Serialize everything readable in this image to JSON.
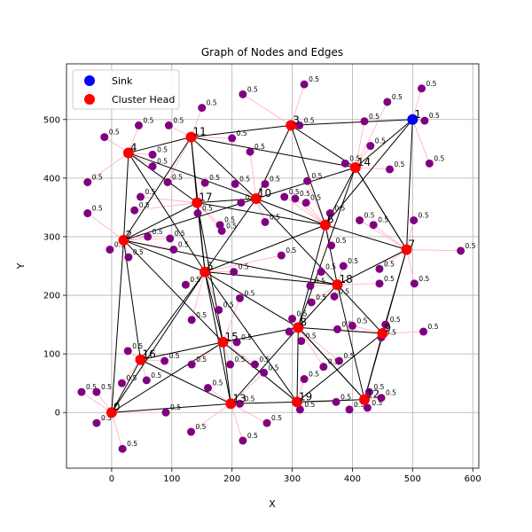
{
  "chart_data": {
    "type": "scatter",
    "title": "Graph of Nodes and Edges",
    "xlabel": "X",
    "ylabel": "Y",
    "xlim": [
      -75,
      610
    ],
    "ylim": [
      -95,
      595
    ],
    "xticks": [
      0,
      100,
      200,
      300,
      400,
      500,
      600
    ],
    "yticks": [
      0,
      100,
      200,
      300,
      400,
      500
    ],
    "grid": true,
    "legend": {
      "position": "upper-left",
      "entries": [
        {
          "label": "Sink",
          "color": "#0000ff"
        },
        {
          "label": "Cluster Head",
          "color": "#ff0000"
        }
      ]
    },
    "colors": {
      "sink": "#0000ff",
      "cluster_head": "#ff0000",
      "member": "#800080",
      "member_edge": "#ffb6c1",
      "head_edge": "#000000"
    },
    "weight_label": "0.5",
    "sink": {
      "id": "1",
      "x": 500,
      "y": 500
    },
    "cluster_heads": [
      {
        "id": "0",
        "x": 0,
        "y": 0
      },
      {
        "id": "2",
        "x": 20,
        "y": 294
      },
      {
        "id": "4",
        "x": 28,
        "y": 443
      },
      {
        "id": "5",
        "x": 155,
        "y": 240
      },
      {
        "id": "6",
        "x": 355,
        "y": 320
      },
      {
        "id": "7",
        "x": 490,
        "y": 278
      },
      {
        "id": "8",
        "x": 310,
        "y": 145
      },
      {
        "id": "9",
        "x": 450,
        "y": 135
      },
      {
        "id": "10",
        "x": 240,
        "y": 365
      },
      {
        "id": "11",
        "x": 132,
        "y": 470
      },
      {
        "id": "12",
        "x": 420,
        "y": 22
      },
      {
        "id": "13",
        "x": 198,
        "y": 15
      },
      {
        "id": "14",
        "x": 405,
        "y": 418
      },
      {
        "id": "15",
        "x": 185,
        "y": 120
      },
      {
        "id": "16",
        "x": 48,
        "y": 90
      },
      {
        "id": "17",
        "x": 142,
        "y": 358
      },
      {
        "id": "18",
        "x": 375,
        "y": 218
      },
      {
        "id": "19",
        "x": 308,
        "y": 18
      },
      {
        "id": "3",
        "x": 298,
        "y": 490
      }
    ],
    "head_edges": [
      [
        "0",
        "16"
      ],
      [
        "0",
        "2"
      ],
      [
        "0",
        "13"
      ],
      [
        "0",
        "15"
      ],
      [
        "0",
        "5"
      ],
      [
        "16",
        "2"
      ],
      [
        "16",
        "15"
      ],
      [
        "16",
        "13"
      ],
      [
        "16",
        "5"
      ],
      [
        "2",
        "4"
      ],
      [
        "2",
        "11"
      ],
      [
        "2",
        "5"
      ],
      [
        "2",
        "17"
      ],
      [
        "2",
        "10"
      ],
      [
        "2",
        "15"
      ],
      [
        "2",
        "18"
      ],
      [
        "4",
        "11"
      ],
      [
        "4",
        "17"
      ],
      [
        "4",
        "10"
      ],
      [
        "4",
        "5"
      ],
      [
        "11",
        "3"
      ],
      [
        "11",
        "17"
      ],
      [
        "11",
        "10"
      ],
      [
        "11",
        "5"
      ],
      [
        "11",
        "14"
      ],
      [
        "3",
        "1"
      ],
      [
        "3",
        "10"
      ],
      [
        "3",
        "14"
      ],
      [
        "3",
        "6"
      ],
      [
        "17",
        "10"
      ],
      [
        "17",
        "5"
      ],
      [
        "17",
        "15"
      ],
      [
        "17",
        "6"
      ],
      [
        "10",
        "6"
      ],
      [
        "10",
        "14"
      ],
      [
        "10",
        "5"
      ],
      [
        "10",
        "18"
      ],
      [
        "14",
        "1"
      ],
      [
        "14",
        "6"
      ],
      [
        "14",
        "7"
      ],
      [
        "14",
        "8"
      ],
      [
        "6",
        "7"
      ],
      [
        "6",
        "18"
      ],
      [
        "6",
        "8"
      ],
      [
        "6",
        "5"
      ],
      [
        "6",
        "1"
      ],
      [
        "1",
        "7"
      ],
      [
        "7",
        "9"
      ],
      [
        "7",
        "12"
      ],
      [
        "7",
        "18"
      ],
      [
        "7",
        "14"
      ],
      [
        "18",
        "9"
      ],
      [
        "18",
        "8"
      ],
      [
        "18",
        "12"
      ],
      [
        "18",
        "5"
      ],
      [
        "9",
        "12"
      ],
      [
        "9",
        "8"
      ],
      [
        "9",
        "19"
      ],
      [
        "8",
        "15"
      ],
      [
        "8",
        "19"
      ],
      [
        "8",
        "13"
      ],
      [
        "8",
        "5"
      ],
      [
        "8",
        "12"
      ],
      [
        "5",
        "15"
      ],
      [
        "5",
        "13"
      ],
      [
        "5",
        "19"
      ],
      [
        "15",
        "13"
      ],
      [
        "15",
        "19"
      ],
      [
        "13",
        "19"
      ],
      [
        "19",
        "12"
      ],
      [
        "12",
        "8"
      ]
    ],
    "members": [
      {
        "x": 45,
        "y": 490,
        "head": "4"
      },
      {
        "x": -12,
        "y": 470,
        "head": "4"
      },
      {
        "x": 68,
        "y": 440,
        "head": "4"
      },
      {
        "x": 68,
        "y": 420,
        "head": "4"
      },
      {
        "x": -40,
        "y": 393,
        "head": "4"
      },
      {
        "x": 95,
        "y": 490,
        "head": "11"
      },
      {
        "x": 150,
        "y": 520,
        "head": "11"
      },
      {
        "x": 200,
        "y": 468,
        "head": "11"
      },
      {
        "x": 93,
        "y": 393,
        "head": "11"
      },
      {
        "x": 218,
        "y": 543,
        "head": "3"
      },
      {
        "x": 320,
        "y": 560,
        "head": "3"
      },
      {
        "x": 312,
        "y": 490,
        "head": "3"
      },
      {
        "x": 230,
        "y": 445,
        "head": "10"
      },
      {
        "x": 255,
        "y": 390,
        "head": "10"
      },
      {
        "x": 205,
        "y": 390,
        "head": "10"
      },
      {
        "x": 215,
        "y": 358,
        "head": "10"
      },
      {
        "x": 255,
        "y": 325,
        "head": "10"
      },
      {
        "x": 155,
        "y": 392,
        "head": "17"
      },
      {
        "x": 48,
        "y": 368,
        "head": "17"
      },
      {
        "x": 38,
        "y": 345,
        "head": "17"
      },
      {
        "x": 143,
        "y": 340,
        "head": "17"
      },
      {
        "x": 180,
        "y": 320,
        "head": "17"
      },
      {
        "x": 183,
        "y": 310,
        "head": "17"
      },
      {
        "x": -40,
        "y": 340,
        "head": "2"
      },
      {
        "x": 60,
        "y": 300,
        "head": "2"
      },
      {
        "x": 97,
        "y": 297,
        "head": "2"
      },
      {
        "x": 103,
        "y": 278,
        "head": "2"
      },
      {
        "x": -3,
        "y": 278,
        "head": "2"
      },
      {
        "x": 28,
        "y": 265,
        "head": "2"
      },
      {
        "x": 123,
        "y": 218,
        "head": "5"
      },
      {
        "x": 203,
        "y": 240,
        "head": "5"
      },
      {
        "x": 178,
        "y": 175,
        "head": "5"
      },
      {
        "x": 133,
        "y": 158,
        "head": "5"
      },
      {
        "x": 282,
        "y": 268,
        "head": "5"
      },
      {
        "x": 287,
        "y": 368,
        "head": "6"
      },
      {
        "x": 305,
        "y": 365,
        "head": "6"
      },
      {
        "x": 323,
        "y": 358,
        "head": "6"
      },
      {
        "x": 325,
        "y": 395,
        "head": "6"
      },
      {
        "x": 363,
        "y": 340,
        "head": "6"
      },
      {
        "x": 388,
        "y": 425,
        "head": "14"
      },
      {
        "x": 420,
        "y": 497,
        "head": "14"
      },
      {
        "x": 458,
        "y": 530,
        "head": "14"
      },
      {
        "x": 430,
        "y": 455,
        "head": "14"
      },
      {
        "x": 462,
        "y": 415,
        "head": "14"
      },
      {
        "x": 515,
        "y": 553,
        "head": "1"
      },
      {
        "x": 528,
        "y": 425,
        "head": "1"
      },
      {
        "x": 520,
        "y": 498,
        "head": "1"
      },
      {
        "x": 412,
        "y": 328,
        "head": "7"
      },
      {
        "x": 435,
        "y": 320,
        "head": "7"
      },
      {
        "x": 502,
        "y": 328,
        "head": "7"
      },
      {
        "x": 580,
        "y": 276,
        "head": "7"
      },
      {
        "x": 503,
        "y": 220,
        "head": "7"
      },
      {
        "x": 445,
        "y": 245,
        "head": "7"
      },
      {
        "x": 365,
        "y": 285,
        "head": "6"
      },
      {
        "x": 385,
        "y": 250,
        "head": "18"
      },
      {
        "x": 348,
        "y": 240,
        "head": "18"
      },
      {
        "x": 330,
        "y": 216,
        "head": "18"
      },
      {
        "x": 332,
        "y": 188,
        "head": "18"
      },
      {
        "x": 370,
        "y": 198,
        "head": "18"
      },
      {
        "x": 445,
        "y": 220,
        "head": "18"
      },
      {
        "x": 375,
        "y": 142,
        "head": "9"
      },
      {
        "x": 400,
        "y": 148,
        "head": "9"
      },
      {
        "x": 455,
        "y": 150,
        "head": "9"
      },
      {
        "x": 448,
        "y": 128,
        "head": "9"
      },
      {
        "x": 518,
        "y": 138,
        "head": "9"
      },
      {
        "x": 300,
        "y": 160,
        "head": "8"
      },
      {
        "x": 315,
        "y": 122,
        "head": "8"
      },
      {
        "x": 295,
        "y": 138,
        "head": "8"
      },
      {
        "x": 352,
        "y": 78,
        "head": "8"
      },
      {
        "x": 378,
        "y": 88,
        "head": "8"
      },
      {
        "x": 320,
        "y": 57,
        "head": "19"
      },
      {
        "x": 313,
        "y": 5,
        "head": "19"
      },
      {
        "x": 373,
        "y": 18,
        "head": "19"
      },
      {
        "x": 395,
        "y": 5,
        "head": "12"
      },
      {
        "x": 425,
        "y": 8,
        "head": "12"
      },
      {
        "x": 428,
        "y": 35,
        "head": "12"
      },
      {
        "x": 448,
        "y": 25,
        "head": "12"
      },
      {
        "x": 238,
        "y": 82,
        "head": "15"
      },
      {
        "x": 208,
        "y": 120,
        "head": "15"
      },
      {
        "x": 197,
        "y": 82,
        "head": "15"
      },
      {
        "x": 133,
        "y": 82,
        "head": "15"
      },
      {
        "x": 213,
        "y": 195,
        "head": "15"
      },
      {
        "x": 160,
        "y": 42,
        "head": "13"
      },
      {
        "x": 253,
        "y": 68,
        "head": "13"
      },
      {
        "x": 213,
        "y": 15,
        "head": "13"
      },
      {
        "x": 258,
        "y": -18,
        "head": "13"
      },
      {
        "x": 218,
        "y": -48,
        "head": "13"
      },
      {
        "x": 132,
        "y": -33,
        "head": "13"
      },
      {
        "x": 27,
        "y": 105,
        "head": "16"
      },
      {
        "x": 88,
        "y": 88,
        "head": "16"
      },
      {
        "x": 58,
        "y": 55,
        "head": "16"
      },
      {
        "x": 17,
        "y": 50,
        "head": "16"
      },
      {
        "x": 90,
        "y": 0,
        "head": "0"
      },
      {
        "x": -25,
        "y": 35,
        "head": "0"
      },
      {
        "x": -50,
        "y": 35,
        "head": "0"
      },
      {
        "x": -25,
        "y": -18,
        "head": "0"
      },
      {
        "x": 18,
        "y": -62,
        "head": "0"
      }
    ]
  }
}
